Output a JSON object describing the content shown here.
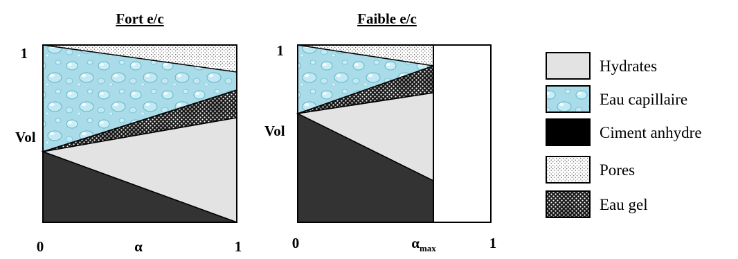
{
  "panels": {
    "left": {
      "title": "Fort e/c",
      "y_top": "1",
      "y_mid": "Vol",
      "x_start": "0",
      "x_mid": "α",
      "x_end": "1"
    },
    "right": {
      "title": "Faible e/c",
      "y_top": "1",
      "y_mid": "Vol",
      "x_start": "0",
      "x_mid_base": "α",
      "x_mid_sub": "max",
      "x_end": "1"
    }
  },
  "legend": [
    {
      "label": "Hydrates",
      "pattern": "solid-light-gray"
    },
    {
      "label": "Eau capillaire",
      "pattern": "water-drops"
    },
    {
      "label": "Ciment anhydre",
      "pattern": "solid-black"
    },
    {
      "label": "Pores",
      "pattern": "fine-dots"
    },
    {
      "label": "Eau gel",
      "pattern": "checkered"
    }
  ],
  "colors": {
    "hydrates": "#e3e3e3",
    "eau_capillaire": "#a9dce8",
    "ciment_anhydre": "#333333",
    "pores_bg": "#ffffff",
    "pores_dot": "#555555",
    "eau_gel_dark": "#1a1a1a",
    "eau_gel_light": "#ffffff",
    "outline": "#000000"
  }
}
